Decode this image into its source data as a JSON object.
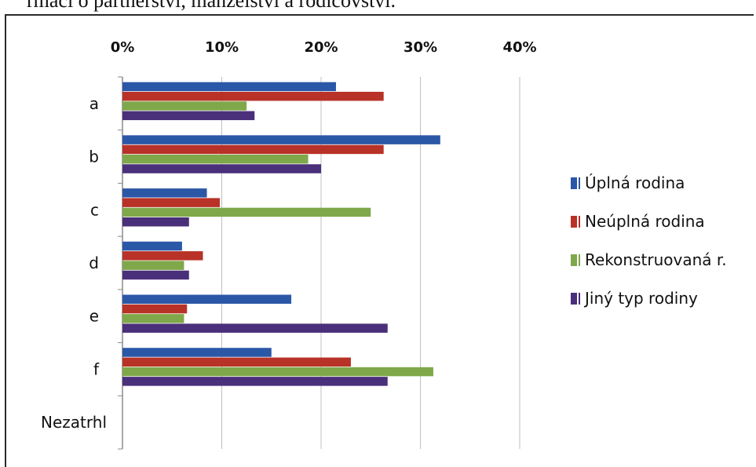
{
  "caption": "rmací o partnerství, manželství a rodičovství.",
  "chart_data": {
    "type": "bar",
    "orientation": "horizontal",
    "categories": [
      "a",
      "b",
      "c",
      "d",
      "e",
      "f",
      "Nezatrhl"
    ],
    "xlim": [
      0,
      40
    ],
    "xticks": [
      "0%",
      "10%",
      "20%",
      "30%",
      "40%"
    ],
    "grid": true,
    "legend_position": "right",
    "series": [
      {
        "name": "Úplná rodina",
        "color": "#2b57a7",
        "values": [
          21.5,
          32,
          8.5,
          6,
          17,
          15,
          0
        ]
      },
      {
        "name": "Neúplná rodina",
        "color": "#b83227",
        "values": [
          26.3,
          26.3,
          9.8,
          8.1,
          6.5,
          23,
          0
        ]
      },
      {
        "name": "Rekonstruovaná r.",
        "color": "#7fa84a",
        "values": [
          12.5,
          18.7,
          25,
          6.2,
          6.2,
          31.3,
          0
        ]
      },
      {
        "name": "Jiný typ rodiny",
        "color": "#4a2f7a",
        "values": [
          13.3,
          20,
          6.7,
          6.7,
          26.7,
          26.7,
          0
        ]
      }
    ]
  }
}
